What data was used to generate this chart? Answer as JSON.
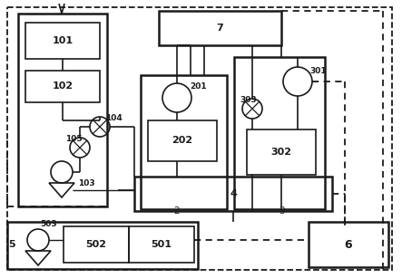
{
  "bg_color": "#ffffff",
  "line_color": "#1a1a1a",
  "fig_width": 4.43,
  "fig_height": 3.07,
  "dpi": 100
}
